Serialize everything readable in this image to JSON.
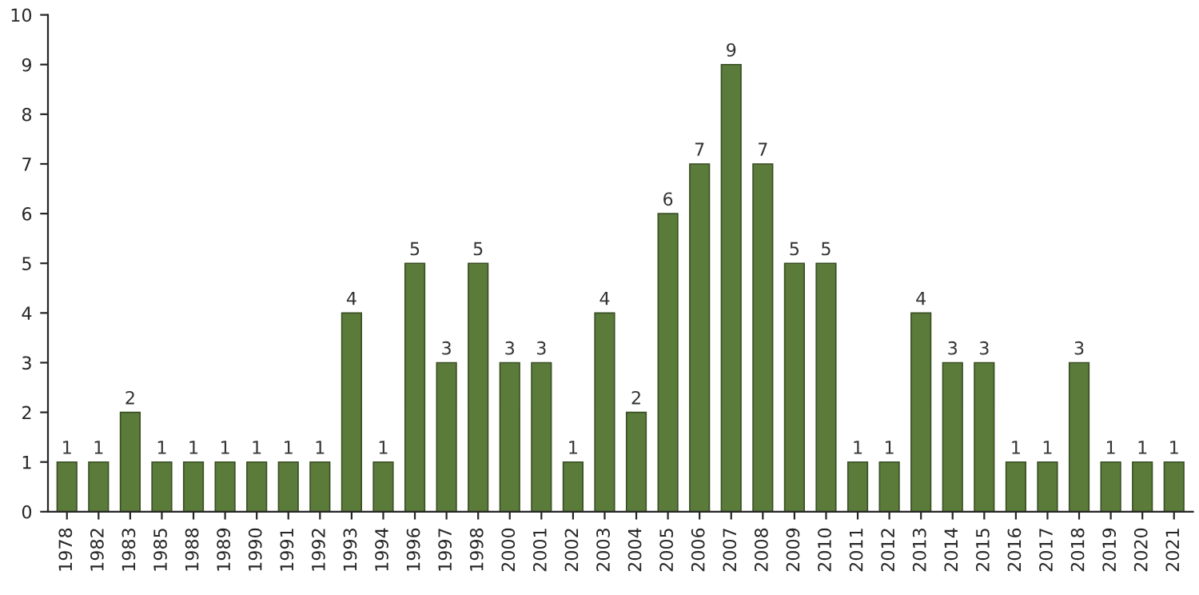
{
  "chart_data": {
    "type": "bar",
    "categories": [
      "1978",
      "1982",
      "1983",
      "1985",
      "1988",
      "1989",
      "1990",
      "1991",
      "1992",
      "1993",
      "1994",
      "1996",
      "1997",
      "1998",
      "2000",
      "2001",
      "2002",
      "2003",
      "2004",
      "2005",
      "2006",
      "2007",
      "2008",
      "2009",
      "2010",
      "2011",
      "2012",
      "2013",
      "2014",
      "2015",
      "2016",
      "2017",
      "2018",
      "2019",
      "2020",
      "2021"
    ],
    "values": [
      1,
      1,
      2,
      1,
      1,
      1,
      1,
      1,
      1,
      4,
      1,
      5,
      3,
      5,
      3,
      3,
      1,
      4,
      2,
      6,
      7,
      9,
      7,
      5,
      5,
      1,
      1,
      4,
      3,
      3,
      1,
      1,
      3,
      1,
      1,
      1
    ],
    "color": "#5b7b3a",
    "ylim": [
      0,
      10
    ],
    "yticks": [
      0,
      1,
      2,
      3,
      4,
      5,
      6,
      7,
      8,
      9,
      10
    ],
    "data_labels": true,
    "grid": false,
    "legend": false
  }
}
